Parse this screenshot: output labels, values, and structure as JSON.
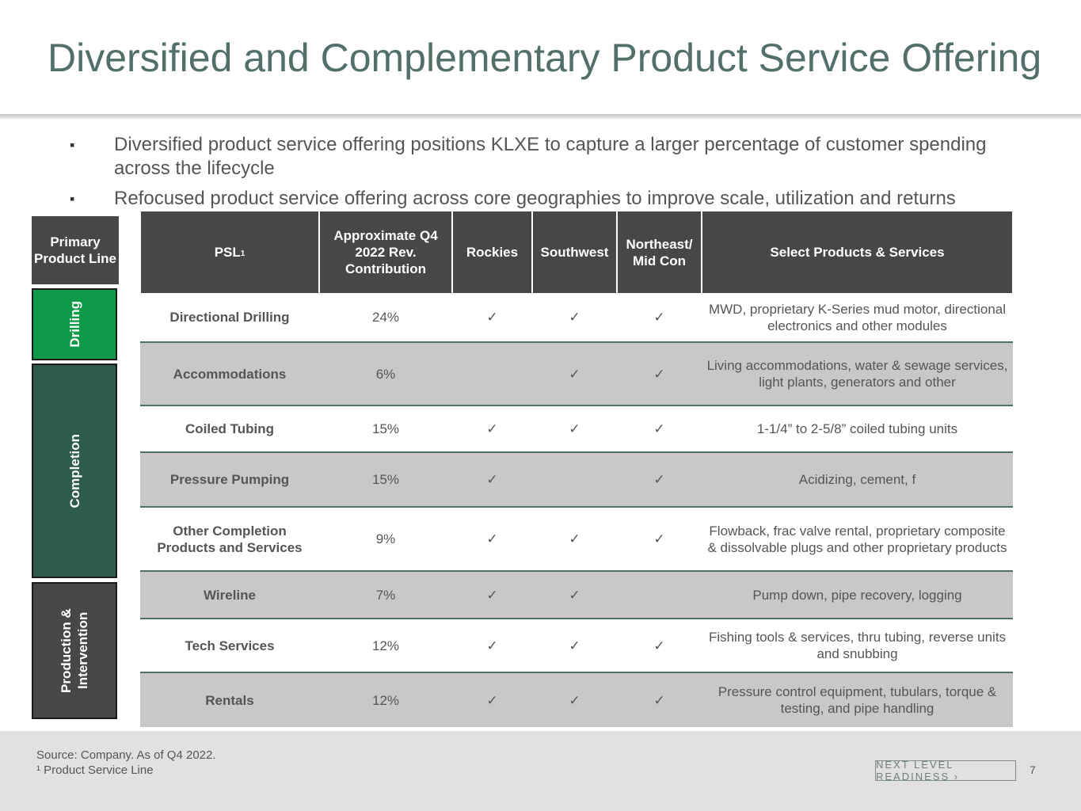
{
  "title": "Diversified and Complementary Product Service Offering",
  "bullets": [
    "Diversified product service offering positions KLXE to capture a larger percentage of customer spending across the lifecycle",
    "Refocused product service offering across core geographies to improve scale, utilization and returns"
  ],
  "side": {
    "header": "Primary Product Line",
    "groups": [
      "Drilling",
      "Completion",
      "Production & Intervention"
    ]
  },
  "table": {
    "headers": {
      "psl": "PSL",
      "psl_sup": "1",
      "rev": "Approximate Q4 2022 Rev. Contribution",
      "rockies": "Rockies",
      "southwest": "Southwest",
      "northeast": "Northeast/ Mid Con",
      "select": "Select Products & Services"
    },
    "check_mark": "✓",
    "rows": [
      {
        "name": "Directional Drilling",
        "rev": "24%",
        "rockies": true,
        "southwest": true,
        "northeast": true,
        "desc": "MWD, proprietary K-Series mud motor, directional electronics and other modules"
      },
      {
        "name": "Accommodations",
        "rev": "6%",
        "rockies": false,
        "southwest": true,
        "northeast": true,
        "desc": "Living accommodations, water &  sewage services, light plants, generators and other"
      },
      {
        "name": "Coiled Tubing",
        "rev": "15%",
        "rockies": true,
        "southwest": true,
        "northeast": true,
        "desc": "1-1/4” to 2-5/8” coiled tubing units"
      },
      {
        "name": "Pressure Pumping",
        "rev": "15%",
        "rockies": true,
        "southwest": false,
        "northeast": true,
        "desc": "Acidizing, cement, f"
      },
      {
        "name": "Other Completion Products and Services",
        "rev": "9%",
        "rockies": true,
        "southwest": true,
        "northeast": true,
        "desc": "Flowback, frac valve rental, proprietary composite & dissolvable plugs and other proprietary products"
      },
      {
        "name": "Wireline",
        "rev": "7%",
        "rockies": true,
        "southwest": true,
        "northeast": false,
        "desc": "Pump down, pipe recovery, logging"
      },
      {
        "name": "Tech Services",
        "rev": "12%",
        "rockies": true,
        "southwest": true,
        "northeast": true,
        "desc": "Fishing tools & services, thru tubing, reverse units and snubbing"
      },
      {
        "name": "Rentals",
        "rev": "12%",
        "rockies": true,
        "southwest": true,
        "northeast": true,
        "desc": "Pressure control equipment, tubulars, torque & testing, and pipe handling"
      }
    ]
  },
  "footer": {
    "source": "Source: Company. As of Q4 2022.",
    "footnote": "¹ Product Service Line",
    "badge": "NEXT LEVEL READINESS ›",
    "page": "7"
  }
}
